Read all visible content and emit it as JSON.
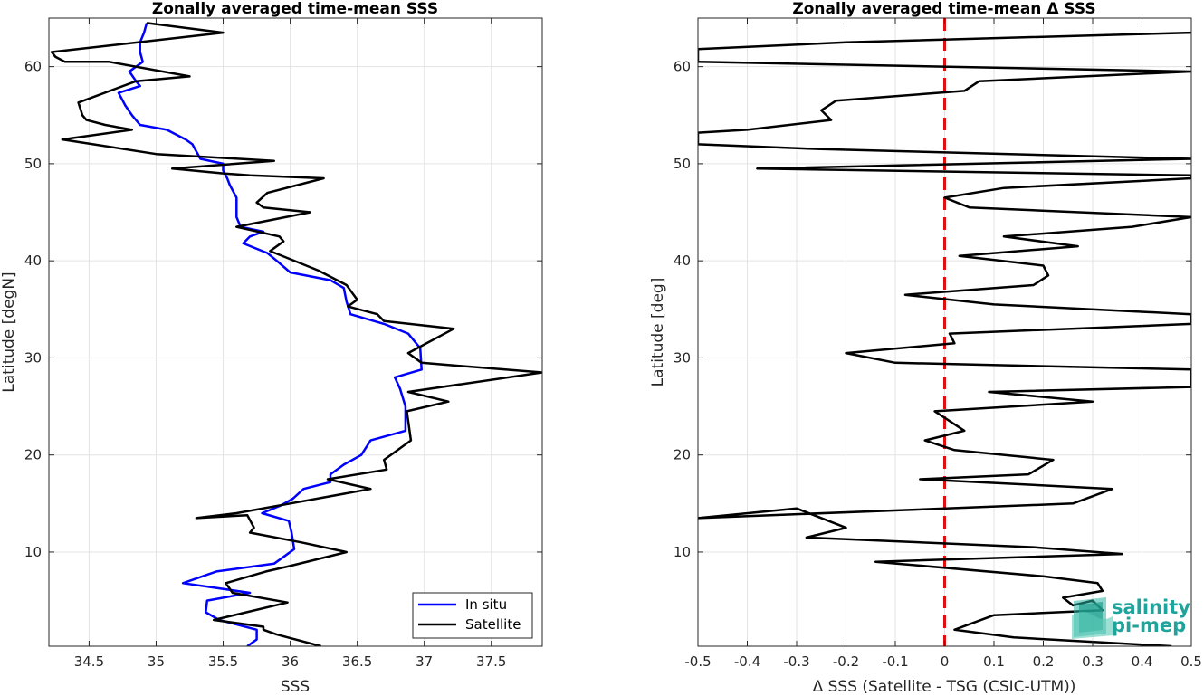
{
  "chart_data": [
    {
      "type": "line",
      "title": "Zonally averaged time-mean SSS",
      "xlabel": "SSS",
      "ylabel": "Latitude [degN]",
      "xlim": [
        34.2,
        37.88
      ],
      "ylim": [
        0.3,
        65
      ],
      "xticks": [
        34.5,
        35,
        35.5,
        36,
        36.5,
        37,
        37.5
      ],
      "xtick_labels": [
        "34.5",
        "35",
        "35.5",
        "36",
        "36.5",
        "37",
        "37.5"
      ],
      "yticks": [
        10,
        20,
        30,
        40,
        50,
        60
      ],
      "ytick_labels": [
        "10",
        "20",
        "30",
        "40",
        "50",
        "60"
      ],
      "grid": true,
      "legend": "bottom-right",
      "series": [
        {
          "name": "In situ",
          "color": "#0000ff",
          "points": [
            [
              35.68,
              0.3
            ],
            [
              35.75,
              1.0
            ],
            [
              35.75,
              2.0
            ],
            [
              35.47,
              3.0
            ],
            [
              35.37,
              3.8
            ],
            [
              35.38,
              5.0
            ],
            [
              35.7,
              5.8
            ],
            [
              35.2,
              6.8
            ],
            [
              35.45,
              8.0
            ],
            [
              35.88,
              8.8
            ],
            [
              35.95,
              9.5
            ],
            [
              36.03,
              10.3
            ],
            [
              36.01,
              12.0
            ],
            [
              35.99,
              13.2
            ],
            [
              35.79,
              14.0
            ],
            [
              35.93,
              14.8
            ],
            [
              36.02,
              15.5
            ],
            [
              36.1,
              16.5
            ],
            [
              36.3,
              17.2
            ],
            [
              36.3,
              18.0
            ],
            [
              36.4,
              19.0
            ],
            [
              36.53,
              20.0
            ],
            [
              36.6,
              21.5
            ],
            [
              36.86,
              22.5
            ],
            [
              36.86,
              25.0
            ],
            [
              36.82,
              26.8
            ],
            [
              36.78,
              28.0
            ],
            [
              36.98,
              28.8
            ],
            [
              36.97,
              31.0
            ],
            [
              36.88,
              32.5
            ],
            [
              36.7,
              33.5
            ],
            [
              36.45,
              34.5
            ],
            [
              36.42,
              35.8
            ],
            [
              36.4,
              37.2
            ],
            [
              36.3,
              38.0
            ],
            [
              36.0,
              38.8
            ],
            [
              35.9,
              40.0
            ],
            [
              35.83,
              40.8
            ],
            [
              35.65,
              41.8
            ],
            [
              35.7,
              42.5
            ],
            [
              35.8,
              43.0
            ],
            [
              35.63,
              43.5
            ],
            [
              35.6,
              44.5
            ],
            [
              35.6,
              46.5
            ],
            [
              35.55,
              47.8
            ],
            [
              35.53,
              48.5
            ],
            [
              35.5,
              49.3
            ],
            [
              35.5,
              50.0
            ],
            [
              35.33,
              50.5
            ],
            [
              35.27,
              52.0
            ],
            [
              35.22,
              52.5
            ],
            [
              35.08,
              53.5
            ],
            [
              34.88,
              54.0
            ],
            [
              34.82,
              55.0
            ],
            [
              34.77,
              56.0
            ],
            [
              34.72,
              57.3
            ],
            [
              34.88,
              58.0
            ],
            [
              34.85,
              58.5
            ],
            [
              34.8,
              59.5
            ],
            [
              34.9,
              60.5
            ],
            [
              34.88,
              61.5
            ],
            [
              34.88,
              62.5
            ],
            [
              34.91,
              63.5
            ],
            [
              34.93,
              64.5
            ]
          ]
        },
        {
          "name": "Satellite",
          "color": "#000000",
          "points": [
            [
              36.23,
              0.3
            ],
            [
              35.9,
              1.5
            ],
            [
              35.8,
              2.0
            ],
            [
              35.8,
              2.3
            ],
            [
              35.43,
              3.0
            ],
            [
              35.98,
              4.8
            ],
            [
              35.57,
              5.8
            ],
            [
              35.52,
              6.8
            ],
            [
              35.82,
              8.0
            ],
            [
              35.98,
              8.5
            ],
            [
              36.42,
              10.0
            ],
            [
              36.08,
              11.0
            ],
            [
              35.7,
              12.0
            ],
            [
              35.73,
              12.5
            ],
            [
              35.68,
              13.8
            ],
            [
              35.3,
              13.5
            ],
            [
              35.6,
              14.0
            ],
            [
              36.0,
              15.0
            ],
            [
              36.6,
              16.5
            ],
            [
              36.28,
              17.5
            ],
            [
              36.72,
              18.5
            ],
            [
              36.7,
              19.5
            ],
            [
              36.9,
              21.5
            ],
            [
              36.87,
              24.5
            ],
            [
              37.18,
              25.5
            ],
            [
              36.88,
              26.5
            ],
            [
              37.88,
              28.5
            ],
            [
              37.15,
              29.3
            ],
            [
              36.98,
              29.5
            ],
            [
              36.88,
              30.5
            ],
            [
              37.22,
              33.0
            ],
            [
              36.7,
              33.8
            ],
            [
              36.65,
              34.5
            ],
            [
              36.43,
              35.3
            ],
            [
              36.5,
              36.0
            ],
            [
              36.42,
              37.5
            ],
            [
              36.21,
              39.0
            ],
            [
              35.85,
              41.0
            ],
            [
              35.95,
              42.0
            ],
            [
              35.92,
              42.5
            ],
            [
              35.6,
              43.5
            ],
            [
              36.15,
              45.0
            ],
            [
              35.8,
              45.5
            ],
            [
              35.75,
              46.0
            ],
            [
              35.83,
              47.0
            ],
            [
              36.25,
              48.5
            ],
            [
              35.7,
              48.8
            ],
            [
              35.5,
              49.0
            ],
            [
              35.12,
              49.5
            ],
            [
              35.88,
              50.3
            ],
            [
              35.0,
              51.0
            ],
            [
              34.3,
              52.5
            ],
            [
              34.82,
              53.5
            ],
            [
              34.62,
              54.0
            ],
            [
              34.48,
              54.5
            ],
            [
              34.45,
              55.0
            ],
            [
              34.42,
              56.3
            ],
            [
              34.85,
              58.5
            ],
            [
              35.25,
              59.0
            ],
            [
              34.65,
              60.5
            ],
            [
              34.32,
              60.5
            ],
            [
              34.25,
              61.0
            ],
            [
              34.22,
              61.5
            ],
            [
              35.5,
              63.5
            ],
            [
              34.93,
              64.5
            ]
          ]
        }
      ]
    },
    {
      "type": "line",
      "title": "Zonally averaged time-mean Δ SSS",
      "xlabel": "Δ SSS (Satellite - TSG (CSIC-UTM))",
      "ylabel": "Latitude [deg]",
      "xlim": [
        -0.5,
        0.5
      ],
      "ylim": [
        0.3,
        65
      ],
      "xticks": [
        -0.5,
        -0.4,
        -0.3,
        -0.2,
        -0.1,
        0,
        0.1,
        0.2,
        0.3,
        0.4,
        0.5
      ],
      "xtick_labels": [
        "-0.5",
        "-0.4",
        "-0.3",
        "-0.2",
        "-0.1",
        "0",
        "0.1",
        "0.2",
        "0.3",
        "0.4",
        "0.5"
      ],
      "yticks": [
        10,
        20,
        30,
        40,
        50,
        60
      ],
      "ytick_labels": [
        "10",
        "20",
        "30",
        "40",
        "50",
        "60"
      ],
      "grid": true,
      "reference_line": {
        "x": 0,
        "color": "#dd1111",
        "style": "dashed"
      },
      "series": [
        {
          "name": "",
          "color": "#000000",
          "points": [
            [
              0.46,
              0.3
            ],
            [
              0.14,
              1.2
            ],
            [
              0.02,
              2.0
            ],
            [
              0.1,
              3.5
            ],
            [
              0.32,
              4.0
            ],
            [
              0.3,
              5.0
            ],
            [
              0.26,
              4.5
            ],
            [
              0.24,
              5.3
            ],
            [
              0.32,
              6.0
            ],
            [
              0.31,
              6.8
            ],
            [
              0.2,
              7.5
            ],
            [
              -0.14,
              9.0
            ],
            [
              0.36,
              9.8
            ],
            [
              0.18,
              10.5
            ],
            [
              -0.28,
              11.5
            ],
            [
              -0.2,
              12.5
            ],
            [
              -0.3,
              14.5
            ],
            [
              -0.5,
              13.5
            ],
            [
              0.26,
              15.0
            ],
            [
              0.34,
              16.5
            ],
            [
              -0.05,
              17.5
            ],
            [
              0.17,
              18.0
            ],
            [
              0.22,
              19.5
            ],
            [
              0.02,
              20.5
            ],
            [
              -0.04,
              21.5
            ],
            [
              0.04,
              22.5
            ],
            [
              -0.02,
              24.5
            ],
            [
              0.3,
              25.5
            ],
            [
              0.09,
              26.5
            ],
            [
              0.5,
              27.0
            ],
            [
              0.5,
              28.8
            ],
            [
              -0.1,
              29.5
            ],
            [
              -0.2,
              30.5
            ],
            [
              0.02,
              31.5
            ],
            [
              0.01,
              32.5
            ],
            [
              0.5,
              33.5
            ],
            [
              0.5,
              34.5
            ],
            [
              0.1,
              35.5
            ],
            [
              -0.08,
              36.5
            ],
            [
              0.18,
              37.5
            ],
            [
              0.21,
              38.5
            ],
            [
              0.2,
              39.5
            ],
            [
              0.03,
              40.5
            ],
            [
              0.27,
              41.5
            ],
            [
              0.12,
              42.5
            ],
            [
              0.38,
              43.5
            ],
            [
              0.5,
              44.5
            ],
            [
              0.05,
              45.5
            ],
            [
              0.0,
              46.5
            ],
            [
              0.12,
              47.5
            ],
            [
              0.5,
              48.5
            ],
            [
              0.5,
              48.8
            ],
            [
              -0.38,
              49.5
            ],
            [
              0.5,
              50.5
            ],
            [
              -0.25,
              51.5
            ],
            [
              -0.5,
              52.0
            ],
            [
              -0.5,
              53.2
            ],
            [
              -0.4,
              53.5
            ],
            [
              -0.23,
              54.5
            ],
            [
              -0.25,
              55.5
            ],
            [
              -0.22,
              56.5
            ],
            [
              0.04,
              57.5
            ],
            [
              0.07,
              58.5
            ],
            [
              0.5,
              59.5
            ],
            [
              -0.5,
              60.5
            ],
            [
              -0.5,
              61.8
            ],
            [
              -0.2,
              62.5
            ],
            [
              0.5,
              63.5
            ]
          ]
        }
      ]
    }
  ],
  "legend": {
    "items": [
      {
        "label": "In situ",
        "color": "#0000ff"
      },
      {
        "label": "Satellite",
        "color": "#000000"
      }
    ]
  },
  "logo": {
    "line1": "salinity",
    "line2": "pi-mep"
  }
}
